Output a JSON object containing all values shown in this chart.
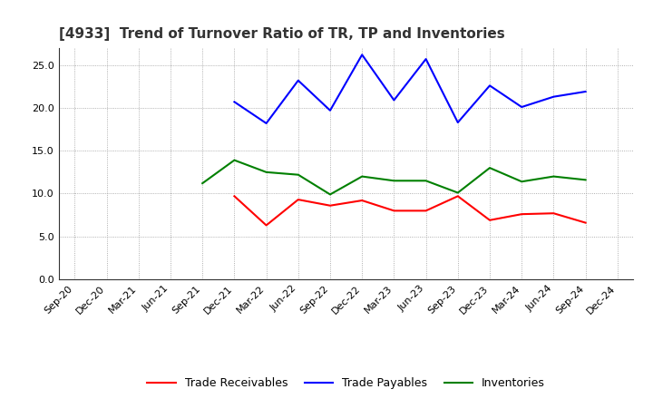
{
  "title": "[4933]  Trend of Turnover Ratio of TR, TP and Inventories",
  "x_labels": [
    "Sep-20",
    "Dec-20",
    "Mar-21",
    "Jun-21",
    "Sep-21",
    "Dec-21",
    "Mar-22",
    "Jun-22",
    "Sep-22",
    "Dec-22",
    "Mar-23",
    "Jun-23",
    "Sep-23",
    "Dec-23",
    "Mar-24",
    "Jun-24",
    "Sep-24",
    "Dec-24"
  ],
  "trade_receivables": [
    null,
    null,
    null,
    null,
    null,
    9.7,
    6.3,
    9.3,
    8.6,
    9.2,
    8.0,
    8.0,
    9.7,
    6.9,
    7.6,
    7.7,
    6.6,
    null
  ],
  "trade_payables": [
    null,
    null,
    null,
    null,
    null,
    20.7,
    18.2,
    23.2,
    19.7,
    26.2,
    20.9,
    25.7,
    18.3,
    22.6,
    20.1,
    21.3,
    21.9,
    null
  ],
  "inventories": [
    null,
    null,
    null,
    null,
    11.2,
    13.9,
    12.5,
    12.2,
    9.9,
    12.0,
    11.5,
    11.5,
    10.1,
    13.0,
    11.4,
    12.0,
    11.6,
    null
  ],
  "ylim": [
    0,
    27
  ],
  "yticks": [
    0.0,
    5.0,
    10.0,
    15.0,
    20.0,
    25.0
  ],
  "tr_color": "#ff0000",
  "tp_color": "#0000ff",
  "inv_color": "#008000",
  "bg_color": "#ffffff",
  "grid_color": "#999999",
  "legend_labels": [
    "Trade Receivables",
    "Trade Payables",
    "Inventories"
  ],
  "title_fontsize": 11,
  "tick_fontsize": 8,
  "legend_fontsize": 9
}
